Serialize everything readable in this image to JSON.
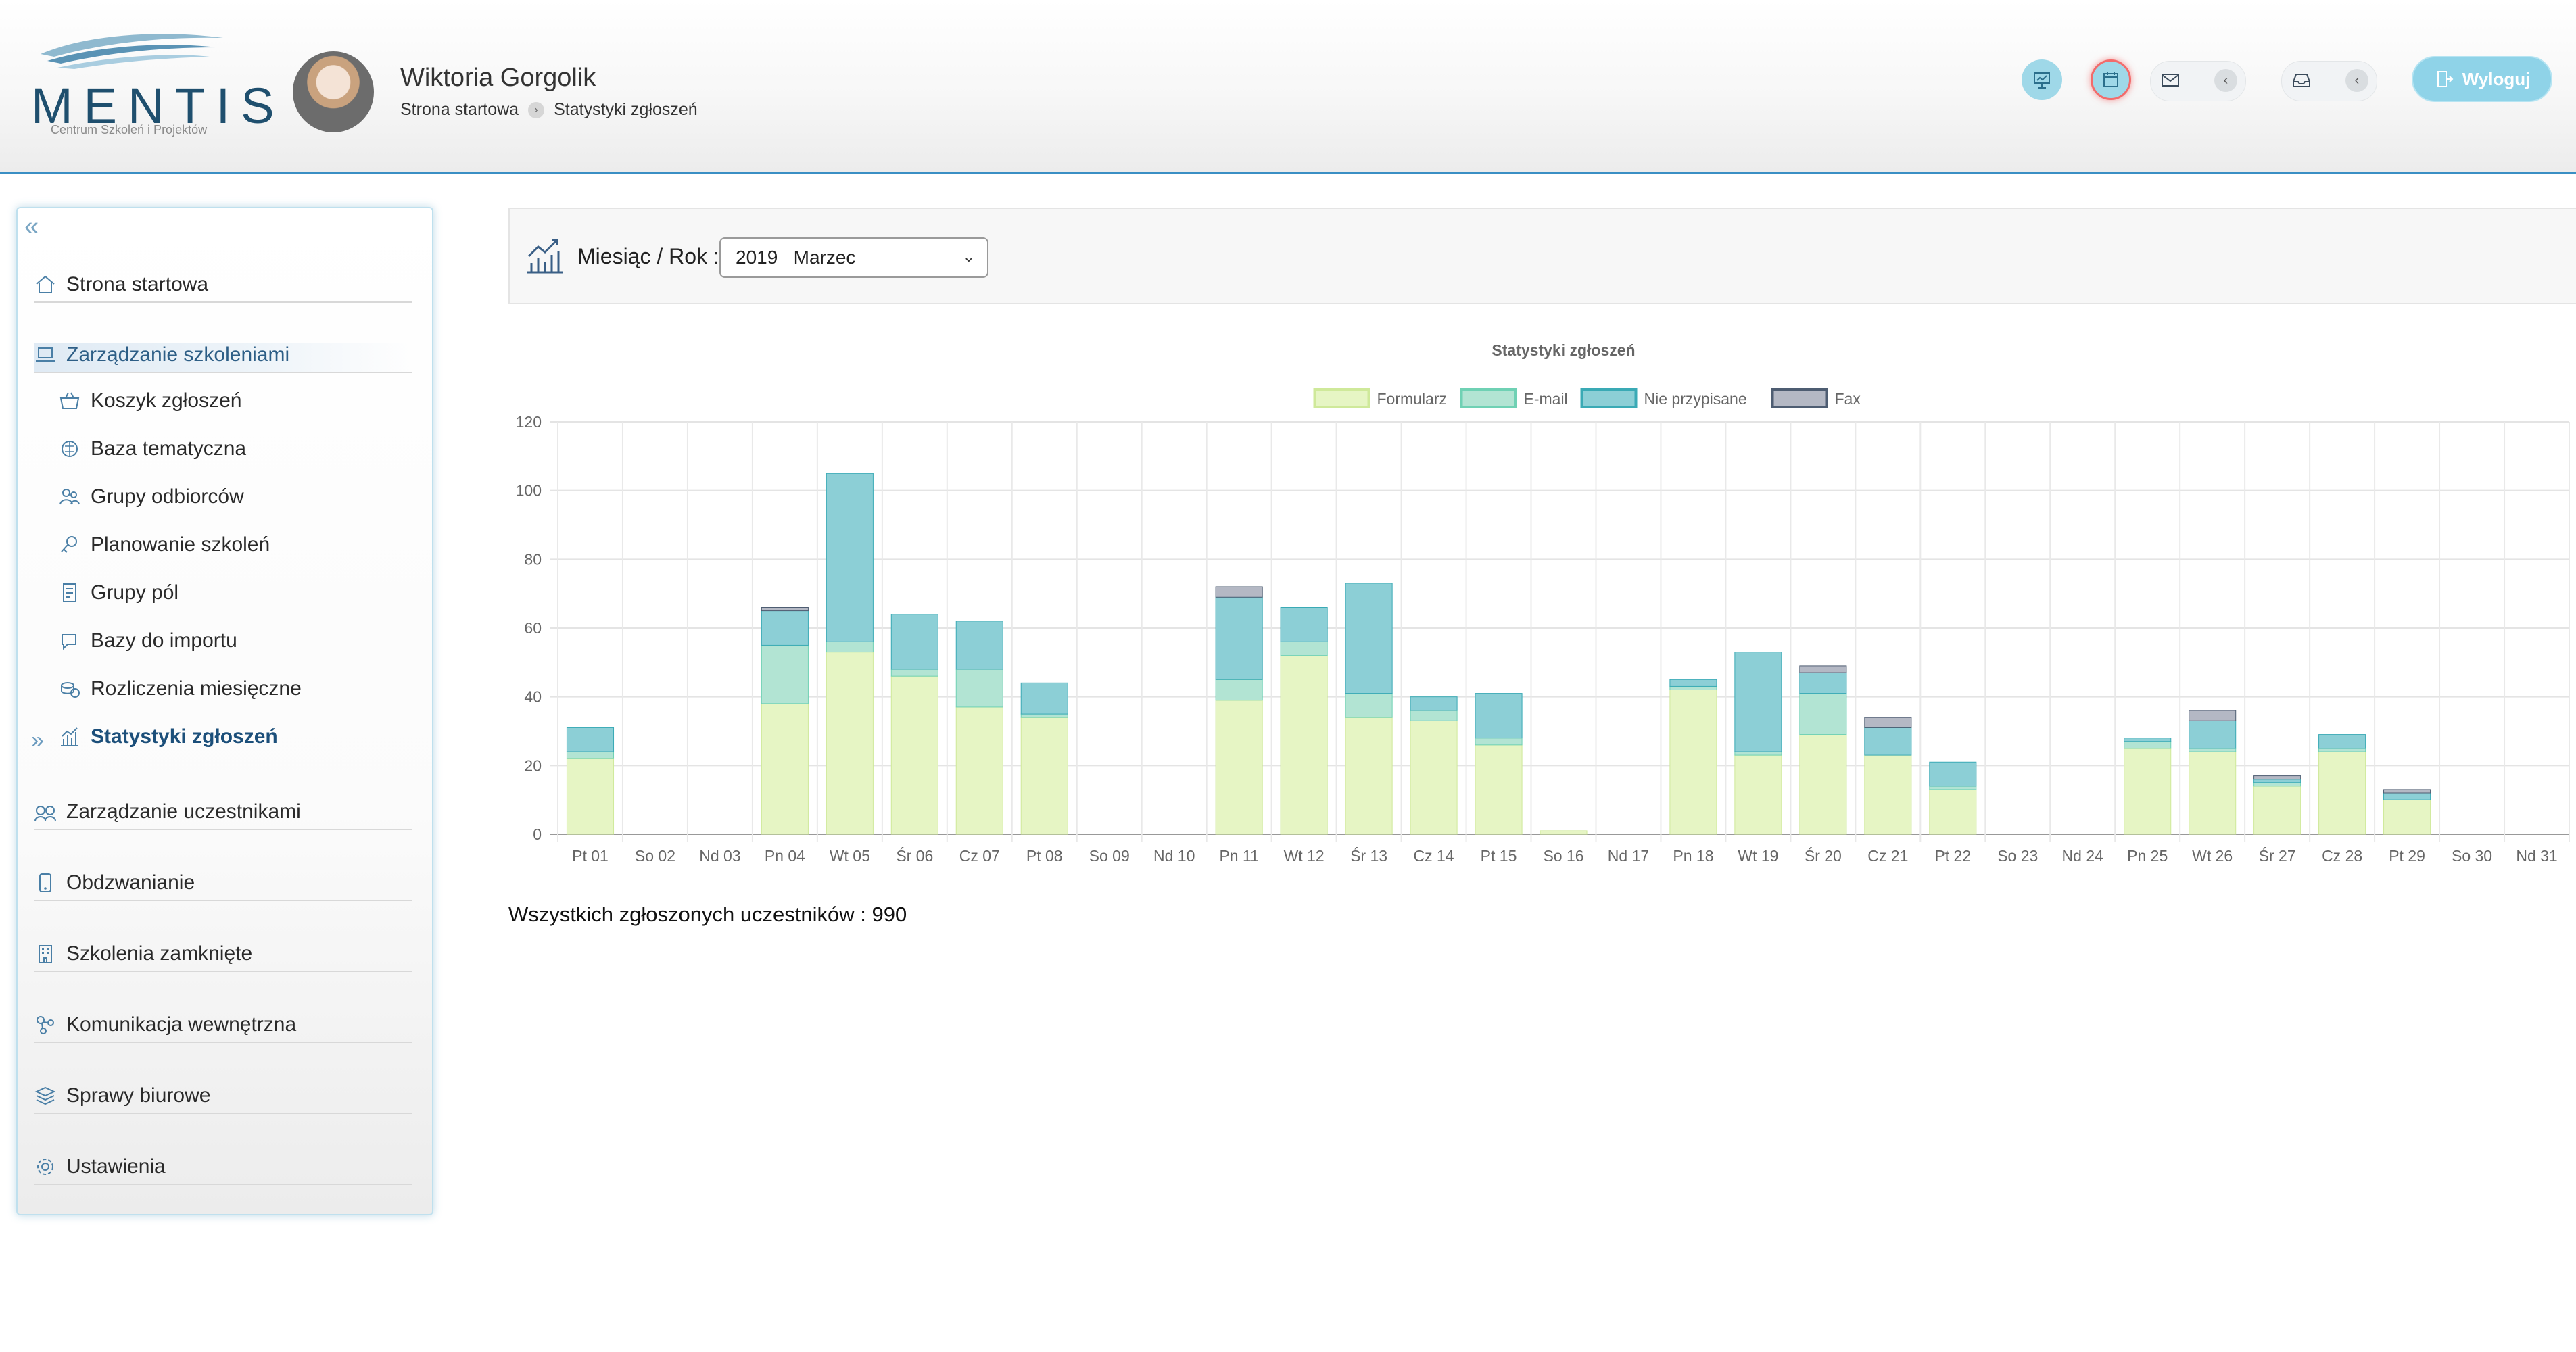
{
  "brand": {
    "name": "MENTIS",
    "subtitle": "Centrum Szkoleń i Projektów"
  },
  "user": {
    "name": "Wiktoria Gorgolik"
  },
  "breadcrumb": {
    "home": "Strona startowa",
    "current": "Statystyki zgłoszeń"
  },
  "header": {
    "logout_label": "Wyloguj",
    "accent": "#8fd3e8"
  },
  "sidebar": {
    "collapse_icon": "double-chevron-left-icon",
    "items": [
      {
        "label": "Strona startowa",
        "icon": "home-icon"
      },
      {
        "label": "Zarządzanie szkoleniami",
        "icon": "laptop-icon"
      },
      {
        "label": "Koszyk zgłoszeń",
        "icon": "basket-icon"
      },
      {
        "label": "Baza tematyczna",
        "icon": "brain-icon"
      },
      {
        "label": "Grupy odbiorców",
        "icon": "group-icon"
      },
      {
        "label": "Planowanie szkoleń",
        "icon": "planning-icon"
      },
      {
        "label": "Grupy pól",
        "icon": "fields-icon"
      },
      {
        "label": "Bazy do importu",
        "icon": "import-icon"
      },
      {
        "label": "Rozliczenia miesięczne",
        "icon": "coins-icon"
      },
      {
        "label": "Statystyki zgłoszeń",
        "icon": "stats-icon"
      },
      {
        "label": "Zarządzanie uczestnikami",
        "icon": "users-icon"
      },
      {
        "label": "Obdzwanianie",
        "icon": "phone-icon"
      },
      {
        "label": "Szkolenia zamknięte",
        "icon": "building-icon"
      },
      {
        "label": "Komunikacja wewnętrzna",
        "icon": "network-icon"
      },
      {
        "label": "Sprawy biurowe",
        "icon": "stack-icon"
      },
      {
        "label": "Ustawienia",
        "icon": "gear-icon"
      }
    ]
  },
  "filter": {
    "label": "Miesiąc / Rok :",
    "selected": "2019   Marzec"
  },
  "summary": {
    "text": "Wszystkich zgłoszonych uczestników : 990"
  },
  "chart_data": {
    "type": "bar",
    "stacked": true,
    "title": "Statystyki zgłoszeń",
    "legend_position": "top",
    "grid": true,
    "ylim": [
      0,
      120
    ],
    "yticks": [
      "0",
      "20",
      "40",
      "60",
      "80",
      "100",
      "120"
    ],
    "categories": [
      "Pt 01",
      "So 02",
      "Nd 03",
      "Pn 04",
      "Wt 05",
      "Śr 06",
      "Cz 07",
      "Pt 08",
      "So 09",
      "Nd 10",
      "Pn 11",
      "Wt 12",
      "Śr 13",
      "Cz 14",
      "Pt 15",
      "So 16",
      "Nd 17",
      "Pn 18",
      "Wt 19",
      "Śr 20",
      "Cz 21",
      "Pt 22",
      "So 23",
      "Nd 24",
      "Pn 25",
      "Wt 26",
      "Śr 27",
      "Cz 28",
      "Pt 29",
      "So 30",
      "Nd 31"
    ],
    "series": [
      {
        "name": "Formularz",
        "color": "#e6f5c4",
        "border": "#cfe99a",
        "values": [
          22,
          0,
          0,
          38,
          53,
          46,
          37,
          34,
          0,
          0,
          39,
          52,
          34,
          33,
          26,
          1,
          0,
          42,
          23,
          29,
          23,
          13,
          0,
          0,
          25,
          24,
          14,
          24,
          10,
          0,
          0
        ]
      },
      {
        "name": "E-mail",
        "color": "#b2e4d3",
        "border": "#6fd1b4",
        "values": [
          2,
          0,
          0,
          17,
          3,
          2,
          11,
          1,
          0,
          0,
          6,
          4,
          7,
          3,
          2,
          0,
          0,
          1,
          1,
          12,
          0,
          1,
          0,
          0,
          2,
          1,
          1,
          1,
          0,
          0,
          0
        ]
      },
      {
        "name": "Nie przypisane",
        "color": "#8ccfd6",
        "border": "#3aaab5",
        "values": [
          7,
          0,
          0,
          10,
          49,
          16,
          14,
          9,
          0,
          0,
          24,
          10,
          32,
          4,
          13,
          0,
          0,
          2,
          29,
          6,
          8,
          7,
          0,
          0,
          1,
          8,
          1,
          4,
          2,
          0,
          0
        ]
      },
      {
        "name": "Fax",
        "color": "#b4b8c4",
        "border": "#4e5d72",
        "values": [
          0,
          0,
          0,
          1,
          0,
          0,
          0,
          0,
          0,
          0,
          3,
          0,
          0,
          0,
          0,
          0,
          0,
          0,
          0,
          2,
          3,
          0,
          0,
          0,
          0,
          3,
          1,
          0,
          1,
          0,
          0
        ]
      }
    ]
  }
}
